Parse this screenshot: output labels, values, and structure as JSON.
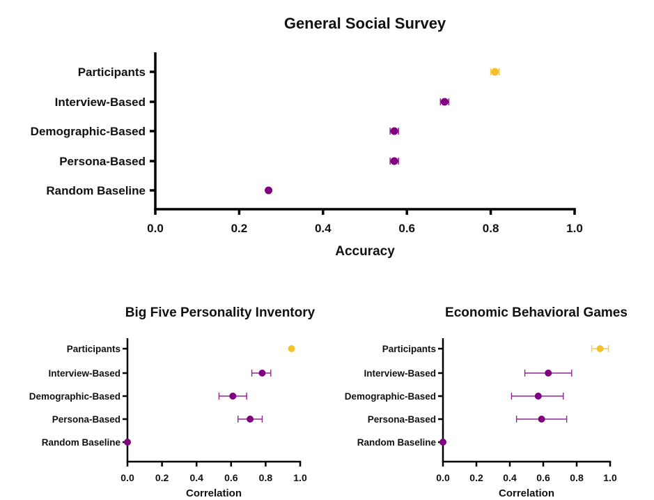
{
  "colors": {
    "model": "#800080",
    "participants": "#F2C12E",
    "axis": "#000000"
  },
  "chart_data": [
    {
      "type": "scatter",
      "title": "General Social Survey",
      "xlabel": "Accuracy",
      "ylabel": "",
      "xlim": [
        0,
        1
      ],
      "xticks": [
        "0.0",
        "0.2",
        "0.4",
        "0.6",
        "0.8",
        "1.0"
      ],
      "grid": false,
      "categories": [
        "Participants",
        "Interview-Based",
        "Demographic-Based",
        "Persona-Based",
        "Random Baseline"
      ],
      "values": [
        0.81,
        0.69,
        0.57,
        0.57,
        0.27
      ],
      "error_low": [
        0.8,
        0.68,
        0.56,
        0.56,
        0.27
      ],
      "error_high": [
        0.82,
        0.7,
        0.58,
        0.58,
        0.27
      ],
      "point_colors": [
        "participants",
        "model",
        "model",
        "model",
        "model"
      ]
    },
    {
      "type": "scatter",
      "title": "Big Five Personality Inventory",
      "xlabel": "Correlation",
      "ylabel": "",
      "xlim": [
        0,
        1
      ],
      "xticks": [
        "0.0",
        "0.2",
        "0.4",
        "0.6",
        "0.8",
        "1.0"
      ],
      "grid": false,
      "categories": [
        "Participants",
        "Interview-Based",
        "Demographic-Based",
        "Persona-Based",
        "Random Baseline"
      ],
      "values": [
        0.95,
        0.78,
        0.61,
        0.71,
        0.0
      ],
      "error_low": [
        0.95,
        0.72,
        0.53,
        0.64,
        0.0
      ],
      "error_high": [
        0.95,
        0.83,
        0.69,
        0.78,
        0.0
      ],
      "point_colors": [
        "participants",
        "model",
        "model",
        "model",
        "model"
      ]
    },
    {
      "type": "scatter",
      "title": "Economic Behavioral Games",
      "xlabel": "Correlation",
      "ylabel": "",
      "xlim": [
        0,
        1
      ],
      "xticks": [
        "0.0",
        "0.2",
        "0.4",
        "0.6",
        "0.8",
        "1.0"
      ],
      "grid": false,
      "categories": [
        "Participants",
        "Interview-Based",
        "Demographic-Based",
        "Persona-Based",
        "Random Baseline"
      ],
      "values": [
        0.94,
        0.63,
        0.57,
        0.59,
        0.0
      ],
      "error_low": [
        0.89,
        0.49,
        0.41,
        0.44,
        0.0
      ],
      "error_high": [
        0.99,
        0.77,
        0.72,
        0.74,
        0.0
      ],
      "point_colors": [
        "participants",
        "model",
        "model",
        "model",
        "model"
      ]
    }
  ]
}
